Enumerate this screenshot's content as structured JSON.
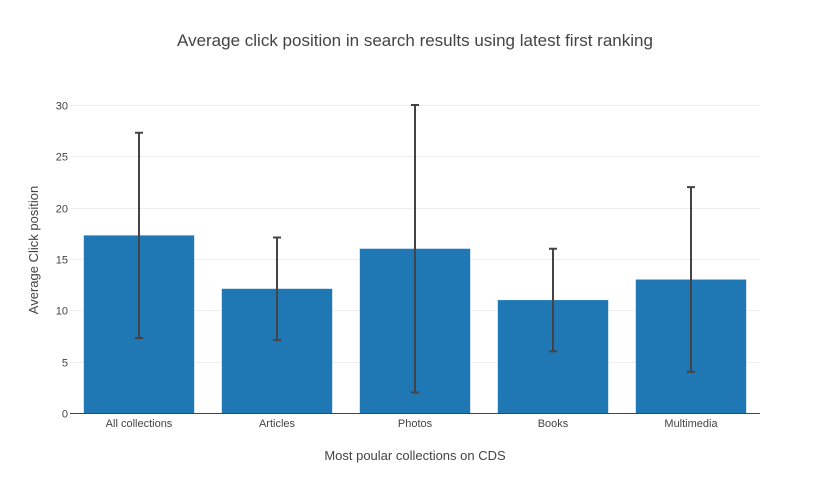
{
  "chart_data": {
    "type": "bar",
    "title": "Average click position in search results using latest first ranking",
    "xlabel": "Most poular collections on CDS",
    "ylabel": "Average Click position",
    "categories": [
      "All collections",
      "Articles",
      "Photos",
      "Books",
      "Multimedia"
    ],
    "values": [
      17.3,
      12.1,
      16.0,
      11.0,
      13.0
    ],
    "error_low": [
      7.3,
      7.1,
      2.0,
      6.0,
      4.0
    ],
    "error_high": [
      27.3,
      17.1,
      30.0,
      16.0,
      22.0
    ],
    "ylim": [
      0,
      30
    ],
    "yticks": [
      0,
      5,
      10,
      15,
      20,
      25,
      30
    ],
    "grid": true,
    "colors": {
      "bar": "#1f77b4",
      "error_bar": "#444444"
    }
  }
}
